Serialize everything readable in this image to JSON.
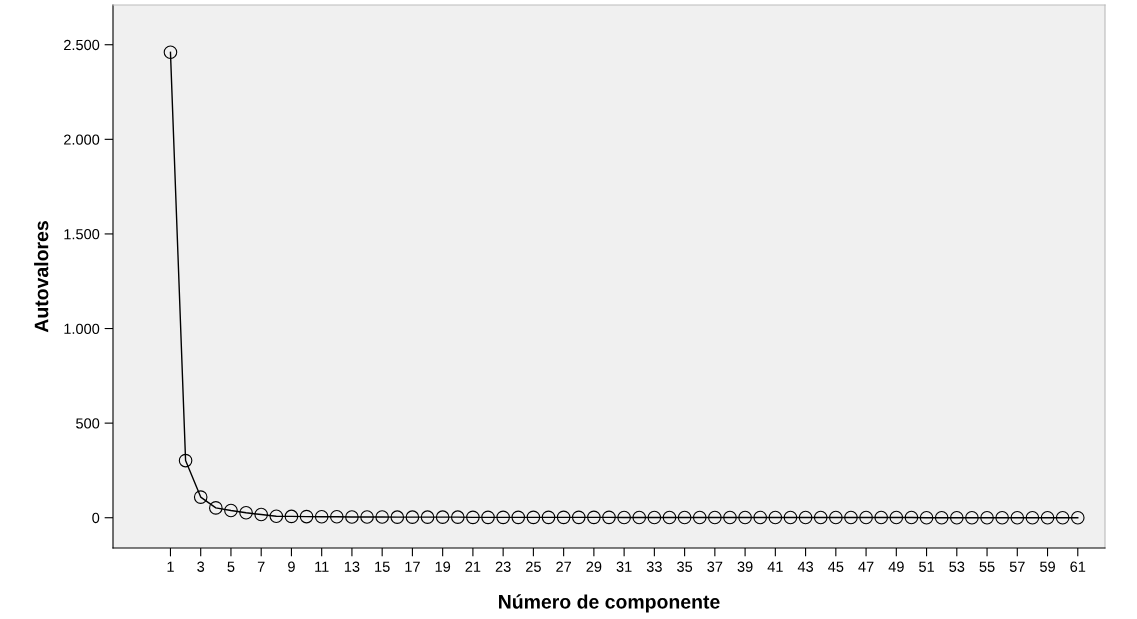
{
  "chart_data": {
    "type": "line",
    "xlabel": "Número de componente",
    "ylabel": "Autovalores",
    "x": [
      1,
      2,
      3,
      4,
      5,
      6,
      7,
      8,
      9,
      10,
      11,
      12,
      13,
      14,
      15,
      16,
      17,
      18,
      19,
      20,
      21,
      22,
      23,
      24,
      25,
      26,
      27,
      28,
      29,
      30,
      31,
      32,
      33,
      34,
      35,
      36,
      37,
      38,
      39,
      40,
      41,
      42,
      43,
      44,
      45,
      46,
      47,
      48,
      49,
      50,
      51,
      52,
      53,
      54,
      55,
      56,
      57,
      58,
      59,
      60,
      61
    ],
    "series": [
      {
        "color": "#000000",
        "values": [
          2460,
          302,
          109,
          52,
          38,
          26,
          17,
          8,
          7,
          6,
          5,
          5,
          4,
          4,
          4,
          3,
          3,
          3,
          3,
          3,
          2,
          2,
          2,
          2,
          2,
          2,
          2,
          2,
          2,
          2,
          1,
          1,
          1,
          1,
          1,
          1,
          1,
          1,
          1,
          1,
          1,
          1,
          1,
          1,
          1,
          1,
          1,
          1,
          1,
          1,
          0,
          0,
          0,
          0,
          0,
          0,
          0,
          0,
          0,
          0,
          0
        ]
      }
    ],
    "xlim": [
      -2.8,
      62.8
    ],
    "ylim": [
      -160,
      2710
    ],
    "xticks": [
      1,
      3,
      5,
      7,
      9,
      11,
      13,
      15,
      17,
      19,
      21,
      23,
      25,
      27,
      29,
      31,
      33,
      35,
      37,
      39,
      41,
      43,
      45,
      47,
      49,
      51,
      53,
      55,
      57,
      59,
      61
    ],
    "yticks": [
      0,
      500,
      {
        "value": 1000,
        "label": "1.000"
      },
      {
        "value": 1500,
        "label": "1.500"
      },
      {
        "value": 2000,
        "label": "2.000"
      },
      {
        "value": 2500,
        "label": "2.500"
      }
    ],
    "marker": "circle",
    "line_style": "solid",
    "grid": false,
    "legend": false
  }
}
